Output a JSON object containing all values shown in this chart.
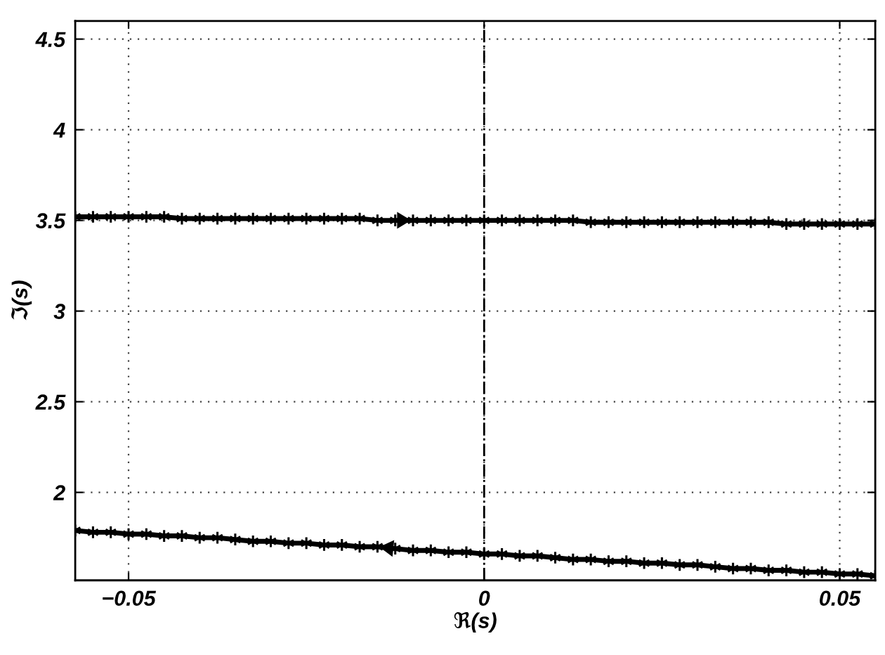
{
  "chart_data": {
    "type": "line",
    "xlabel": "ℜ(s)",
    "ylabel": "ℑ(s)",
    "xlim": [
      -0.0575,
      0.055
    ],
    "ylim": [
      1.515,
      4.6
    ],
    "xticks": [
      {
        "value": -0.05,
        "label": "−0.05"
      },
      0,
      0.05
    ],
    "yticks": [
      2,
      2.5,
      3,
      3.5,
      4,
      4.5
    ],
    "grid": true,
    "marker": "cross",
    "line_style": "solid",
    "ref_lines": [
      {
        "axis": "x",
        "value": 0,
        "color": "#000000",
        "line_style": "dashdot"
      }
    ],
    "series": [
      {
        "color": "#000000",
        "x": [
          -0.0575,
          -0.055,
          -0.0525,
          -0.05,
          -0.0475,
          -0.045,
          -0.0425,
          -0.04,
          -0.0375,
          -0.035,
          -0.0325,
          -0.03,
          -0.0275,
          -0.025,
          -0.0225,
          -0.02,
          -0.0175,
          -0.015,
          -0.0125,
          -0.01,
          -0.0075,
          -0.005,
          -0.0025,
          0,
          0.0025,
          0.005,
          0.0075,
          0.01,
          0.0125,
          0.015,
          0.0175,
          0.02,
          0.0225,
          0.025,
          0.0275,
          0.03,
          0.0325,
          0.035,
          0.0375,
          0.04,
          0.0425,
          0.045,
          0.0475,
          0.05,
          0.0525,
          0.055
        ],
        "values": [
          3.52,
          3.52,
          3.52,
          3.52,
          3.52,
          3.52,
          3.51,
          3.51,
          3.51,
          3.51,
          3.51,
          3.51,
          3.51,
          3.51,
          3.51,
          3.51,
          3.51,
          3.5,
          3.5,
          3.5,
          3.5,
          3.5,
          3.5,
          3.5,
          3.5,
          3.5,
          3.5,
          3.5,
          3.5,
          3.49,
          3.49,
          3.49,
          3.49,
          3.49,
          3.49,
          3.49,
          3.49,
          3.49,
          3.49,
          3.49,
          3.48,
          3.48,
          3.48,
          3.48,
          3.48,
          3.48
        ]
      },
      {
        "color": "#000000",
        "x": [
          0.055,
          0.0525,
          0.05,
          0.0475,
          0.045,
          0.0425,
          0.04,
          0.0375,
          0.035,
          0.0325,
          0.03,
          0.0275,
          0.025,
          0.0225,
          0.02,
          0.0175,
          0.015,
          0.0125,
          0.01,
          0.0075,
          0.005,
          0.0025,
          0,
          -0.0025,
          -0.005,
          -0.0075,
          -0.01,
          -0.0125,
          -0.015,
          -0.0175,
          -0.02,
          -0.0225,
          -0.025,
          -0.0275,
          -0.03,
          -0.0325,
          -0.035,
          -0.0375,
          -0.04,
          -0.0425,
          -0.045,
          -0.0475,
          -0.05,
          -0.0525,
          -0.055,
          -0.0575
        ],
        "values": [
          1.54,
          1.55,
          1.55,
          1.56,
          1.56,
          1.57,
          1.57,
          1.58,
          1.58,
          1.59,
          1.6,
          1.6,
          1.61,
          1.61,
          1.62,
          1.62,
          1.63,
          1.63,
          1.64,
          1.65,
          1.65,
          1.66,
          1.66,
          1.67,
          1.67,
          1.68,
          1.68,
          1.69,
          1.7,
          1.7,
          1.71,
          1.71,
          1.72,
          1.72,
          1.73,
          1.73,
          1.74,
          1.75,
          1.75,
          1.76,
          1.76,
          1.77,
          1.77,
          1.78,
          1.78,
          1.79
        ]
      }
    ]
  }
}
